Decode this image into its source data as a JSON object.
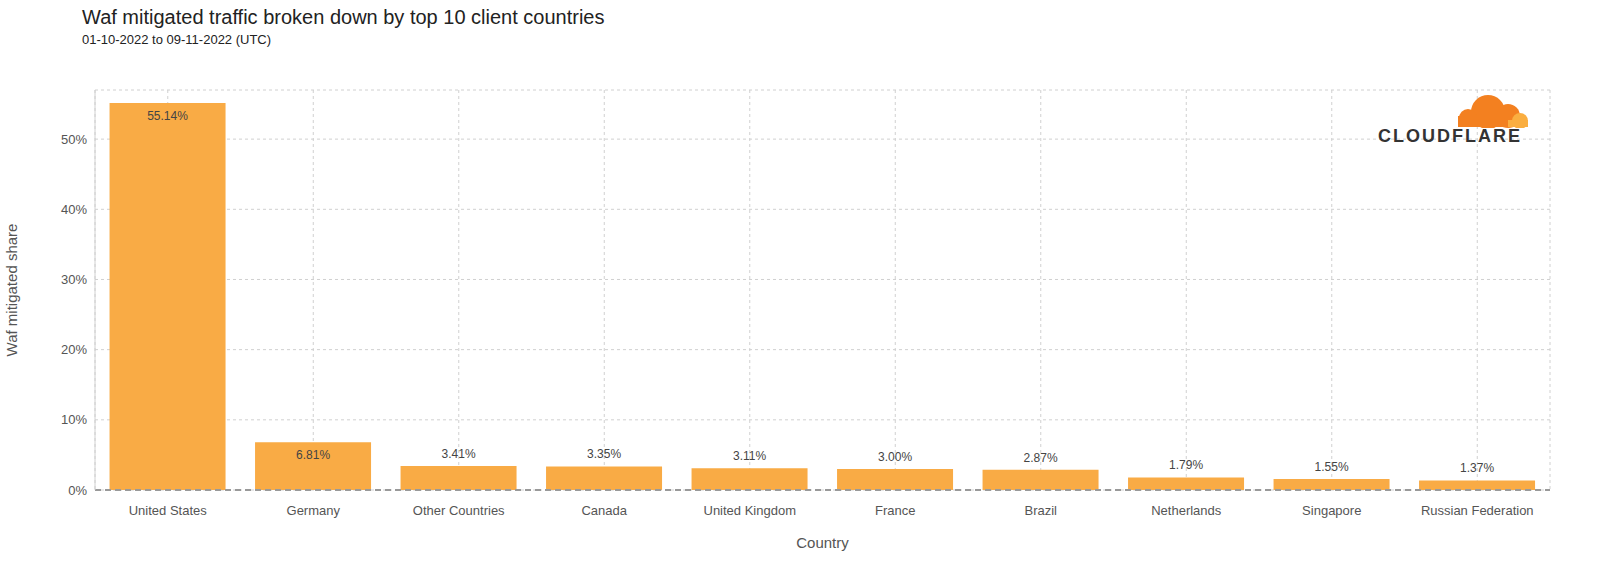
{
  "chart_data": {
    "type": "bar",
    "title": "Waf mitigated traffic broken down by top 10 client countries",
    "subtitle": "01-10-2022 to 09-11-2022 (UTC)",
    "x_label": "Country",
    "y_label": "Waf mitigated share",
    "categories": [
      "United States",
      "Germany",
      "Other Countries",
      "Canada",
      "United Kingdom",
      "France",
      "Brazil",
      "Netherlands",
      "Singapore",
      "Russian Federation"
    ],
    "values": [
      55.14,
      6.81,
      3.41,
      3.35,
      3.11,
      3.0,
      2.87,
      1.79,
      1.55,
      1.37
    ],
    "value_labels": [
      "55.14%",
      "6.81%",
      "3.41%",
      "3.35%",
      "3.11%",
      "3.00%",
      "2.87%",
      "1.79%",
      "1.55%",
      "1.37%"
    ],
    "color": "#f9ab45",
    "ylim": [
      0,
      57
    ],
    "yticks": [
      {
        "value": 0,
        "label": "0%"
      },
      {
        "value": 10,
        "label": "10%"
      },
      {
        "value": 20,
        "label": "20%"
      },
      {
        "value": 30,
        "label": "30%"
      },
      {
        "value": 40,
        "label": "40%"
      },
      {
        "value": 50,
        "label": "50%"
      }
    ],
    "grid": true,
    "data_labels": true,
    "annotations": [
      "CLOUDFLARE"
    ]
  }
}
